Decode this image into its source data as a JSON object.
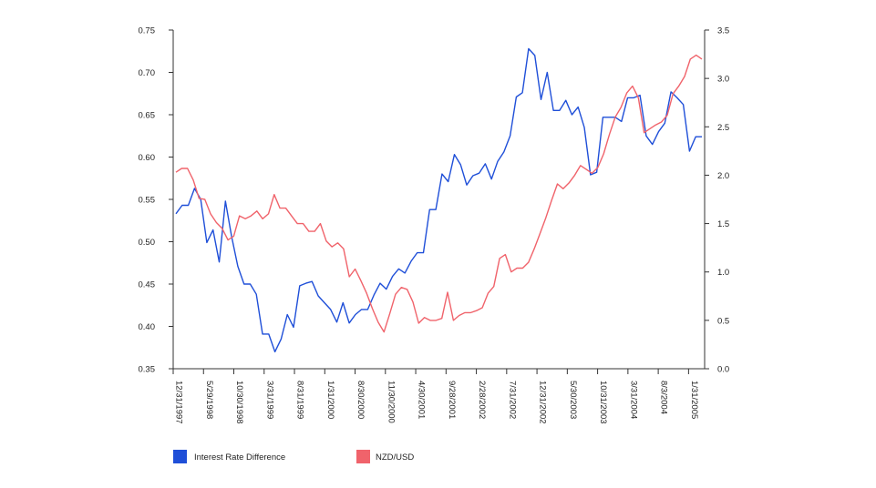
{
  "chart_data": {
    "type": "line",
    "title": "",
    "xlabel": "",
    "ylabel": "",
    "y2label": "",
    "ylim": [
      0.35,
      0.75
    ],
    "y2lim": [
      0.0,
      3.5
    ],
    "y_ticks": [
      "0.75",
      "0.70",
      "0.65",
      "0.60",
      "0.55",
      "0.50",
      "0.45",
      "0.40",
      "0.35"
    ],
    "y2_ticks": [
      "3.5",
      "3.0",
      "2.5",
      "2.0",
      "1.5",
      "1.0",
      "0.5",
      "0.0"
    ],
    "x_tick_labels": [
      "12/31/1997",
      "5/29/1998",
      "10/30/1998",
      "3/31/1999",
      "8/31/1999",
      "1/31/2000",
      "8/30/2000",
      "11/30/2000",
      "4/30/2001",
      "9/28/2001",
      "2/28/2002",
      "7/31/2002",
      "12/31/2002",
      "5/30/2003",
      "10/31/2003",
      "3/31/2004",
      "8/3/2004",
      "1/31/2005"
    ],
    "legend_position": "bottom",
    "grid": false,
    "series": [
      {
        "name": "Interest Rate Difference",
        "axis": "left",
        "color": "#1f4fd8",
        "values": [
          0.533,
          0.543,
          0.543,
          0.563,
          0.55,
          0.499,
          0.514,
          0.476,
          0.548,
          0.506,
          0.471,
          0.45,
          0.45,
          0.438,
          0.391,
          0.391,
          0.37,
          0.385,
          0.414,
          0.399,
          0.448,
          0.451,
          0.453,
          0.436,
          0.428,
          0.42,
          0.405,
          0.428,
          0.404,
          0.414,
          0.42,
          0.42,
          0.437,
          0.451,
          0.444,
          0.459,
          0.468,
          0.463,
          0.477,
          0.487,
          0.487,
          0.538,
          0.538,
          0.58,
          0.571,
          0.603,
          0.591,
          0.567,
          0.578,
          0.581,
          0.592,
          0.574,
          0.595,
          0.606,
          0.625,
          0.671,
          0.676,
          0.728,
          0.72,
          0.668,
          0.7,
          0.655,
          0.655,
          0.667,
          0.65,
          0.659,
          0.635,
          0.579,
          0.582,
          0.647,
          0.647,
          0.647,
          0.642,
          0.67,
          0.67,
          0.673,
          0.625,
          0.615,
          0.63,
          0.64,
          0.677,
          0.67,
          0.662,
          0.607,
          0.624,
          0.624
        ]
      },
      {
        "name": "NZD/USD",
        "axis": "right",
        "color": "#f0636b",
        "values": [
          2.03,
          2.07,
          2.07,
          1.95,
          1.76,
          1.75,
          1.6,
          1.51,
          1.45,
          1.33,
          1.37,
          1.58,
          1.55,
          1.58,
          1.63,
          1.55,
          1.6,
          1.8,
          1.66,
          1.66,
          1.58,
          1.5,
          1.5,
          1.42,
          1.42,
          1.5,
          1.32,
          1.26,
          1.3,
          1.24,
          0.95,
          1.03,
          0.91,
          0.78,
          0.62,
          0.48,
          0.38,
          0.57,
          0.77,
          0.84,
          0.82,
          0.69,
          0.47,
          0.53,
          0.5,
          0.5,
          0.52,
          0.79,
          0.5,
          0.55,
          0.58,
          0.58,
          0.6,
          0.63,
          0.78,
          0.85,
          1.14,
          1.18,
          1.0,
          1.04,
          1.04,
          1.1,
          1.24,
          1.4,
          1.56,
          1.74,
          1.91,
          1.86,
          1.92,
          2.0,
          2.1,
          2.06,
          2.02,
          2.08,
          2.22,
          2.42,
          2.6,
          2.7,
          2.85,
          2.92,
          2.8,
          2.44,
          2.48,
          2.52,
          2.55,
          2.62,
          2.84,
          2.92,
          3.02,
          3.2,
          3.24,
          3.2
        ]
      }
    ]
  }
}
